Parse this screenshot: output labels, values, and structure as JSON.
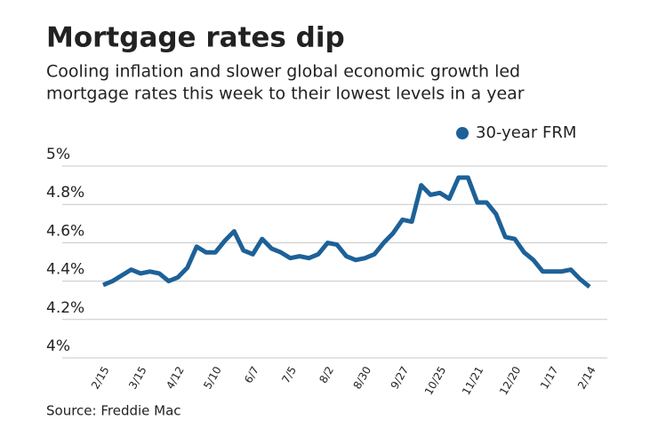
{
  "chart_data": {
    "type": "line",
    "title": "Mortgage rates dip",
    "subtitle": [
      "Cooling inflation and slower global economic growth led",
      "mortgage rates this week to their lowest levels in a year"
    ],
    "source": "Source: Freddie Mac",
    "categories": [
      "2/15",
      null,
      null,
      null,
      "3/15",
      null,
      null,
      null,
      "4/12",
      null,
      null,
      null,
      "5/10",
      null,
      null,
      null,
      "6/7",
      null,
      null,
      null,
      "7/5",
      null,
      null,
      null,
      "8/2",
      null,
      null,
      null,
      "8/30",
      null,
      null,
      null,
      "9/27",
      null,
      null,
      null,
      "10/25",
      null,
      null,
      null,
      "11/21",
      null,
      null,
      null,
      "12/20",
      null,
      null,
      null,
      "1/17",
      null,
      null,
      null,
      "2/14"
    ],
    "series": [
      {
        "name": "30-year FRM",
        "color": "#1d6198",
        "values": [
          4.38,
          4.4,
          4.43,
          4.46,
          4.44,
          4.45,
          4.44,
          4.4,
          4.42,
          4.47,
          4.58,
          4.55,
          4.55,
          4.61,
          4.66,
          4.56,
          4.54,
          4.62,
          4.57,
          4.55,
          4.52,
          4.53,
          4.52,
          4.54,
          4.6,
          4.59,
          4.53,
          4.51,
          4.52,
          4.54,
          4.6,
          4.65,
          4.72,
          4.71,
          4.9,
          4.85,
          4.86,
          4.83,
          4.94,
          4.94,
          4.81,
          4.81,
          4.75,
          4.63,
          4.62,
          4.55,
          4.51,
          4.45,
          4.45,
          4.45,
          4.46,
          4.41,
          4.37
        ]
      }
    ],
    "ylim": [
      4,
      5
    ],
    "yticks": [
      {
        "value": 4,
        "label": "4%"
      },
      {
        "value": 4.2,
        "label": "4.2%"
      },
      {
        "value": 4.4,
        "label": "4.4%"
      },
      {
        "value": 4.6,
        "label": "4.6%"
      },
      {
        "value": 4.8,
        "label": "4.8%"
      },
      {
        "value": 5,
        "label": "5%"
      }
    ],
    "grid": true,
    "legend": "top-right"
  }
}
